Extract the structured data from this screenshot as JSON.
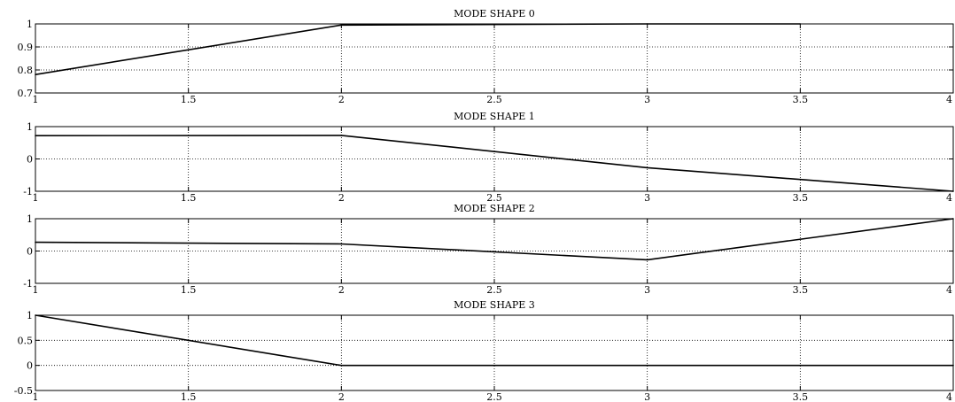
{
  "chart_data": [
    {
      "type": "line",
      "title": "MODE SHAPE 0",
      "xlim": [
        1,
        4
      ],
      "ylim": [
        0.7,
        1
      ],
      "x_ticks": [
        1,
        1.5,
        2,
        2.5,
        3,
        3.5,
        4
      ],
      "x_tick_labels": [
        "1",
        "1.5",
        "2",
        "2.5",
        "3",
        "3.5",
        "4"
      ],
      "y_ticks": [
        0.7,
        0.8,
        0.9,
        1
      ],
      "y_tick_labels": [
        "0.7",
        "0.8",
        "0.9",
        "1"
      ],
      "grid": true,
      "color": "#000000",
      "x": [
        1,
        2,
        3,
        3.5
      ],
      "y": [
        0.78,
        0.995,
        1,
        1
      ]
    },
    {
      "type": "line",
      "title": "MODE SHAPE 1",
      "xlim": [
        1,
        4
      ],
      "ylim": [
        -1,
        1
      ],
      "x_ticks": [
        1,
        1.5,
        2,
        2.5,
        3,
        3.5,
        4
      ],
      "x_tick_labels": [
        "1",
        "1.5",
        "2",
        "2.5",
        "3",
        "3.5",
        "4"
      ],
      "y_ticks": [
        -1,
        0,
        1
      ],
      "y_tick_labels": [
        "-1",
        "0",
        "1"
      ],
      "grid": true,
      "color": "#000000",
      "x": [
        1,
        2,
        3,
        4
      ],
      "y": [
        0.72,
        0.73,
        -0.27,
        -1
      ]
    },
    {
      "type": "line",
      "title": "MODE SHAPE 2",
      "xlim": [
        1,
        4
      ],
      "ylim": [
        -1,
        1
      ],
      "x_ticks": [
        1,
        1.5,
        2,
        2.5,
        3,
        3.5,
        4
      ],
      "x_tick_labels": [
        "1",
        "1.5",
        "2",
        "2.5",
        "3",
        "3.5",
        "4"
      ],
      "y_ticks": [
        -1,
        0,
        1
      ],
      "y_tick_labels": [
        "-1",
        "0",
        "1"
      ],
      "grid": true,
      "color": "#000000",
      "x": [
        1,
        2,
        3,
        4
      ],
      "y": [
        0.27,
        0.22,
        -0.27,
        1
      ]
    },
    {
      "type": "line",
      "title": "MODE SHAPE 3",
      "xlim": [
        1,
        4
      ],
      "ylim": [
        -0.5,
        1
      ],
      "x_ticks": [
        1,
        1.5,
        2,
        2.5,
        3,
        3.5,
        4
      ],
      "x_tick_labels": [
        "1",
        "1.5",
        "2",
        "2.5",
        "3",
        "3.5",
        "4"
      ],
      "y_ticks": [
        -0.5,
        0,
        0.5,
        1
      ],
      "y_tick_labels": [
        "-0.5",
        "0",
        "0.5",
        "1"
      ],
      "grid": true,
      "color": "#000000",
      "x": [
        1,
        2,
        3,
        4
      ],
      "y": [
        1,
        0,
        0,
        0
      ]
    }
  ]
}
